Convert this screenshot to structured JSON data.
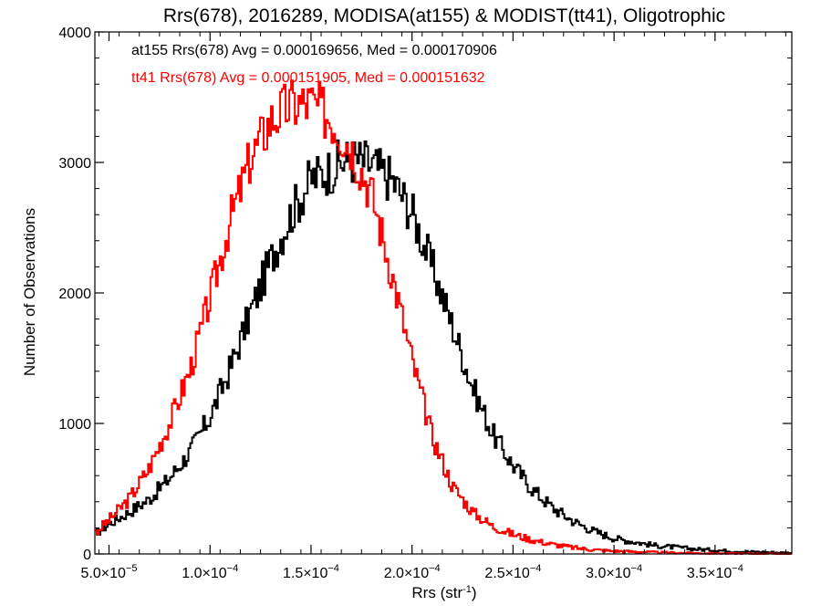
{
  "chart_data": {
    "type": "line",
    "title": "Rrs(678), 2016289, MODISA(at155) & MODIST(tt41), Oligotrophic",
    "xlabel": "Rrs (str",
    "xlabel_sup": "-1",
    "xlabel_end": ")",
    "ylabel": "Number of Observations",
    "xlim": [
      4.3e-05,
      0.000388
    ],
    "ylim": [
      0,
      4000
    ],
    "x_ticks": [
      {
        "value": 5e-05,
        "mantissa": "5.0",
        "exp": "-5"
      },
      {
        "value": 0.0001,
        "mantissa": "1.0",
        "exp": "-4"
      },
      {
        "value": 0.00015,
        "mantissa": "1.5",
        "exp": "-4"
      },
      {
        "value": 0.0002,
        "mantissa": "2.0",
        "exp": "-4"
      },
      {
        "value": 0.00025,
        "mantissa": "2.5",
        "exp": "-4"
      },
      {
        "value": 0.0003,
        "mantissa": "3.0",
        "exp": "-4"
      },
      {
        "value": 0.00035,
        "mantissa": "3.5",
        "exp": "-4"
      }
    ],
    "y_ticks": [
      {
        "value": 0,
        "label": "0"
      },
      {
        "value": 1000,
        "label": "1000"
      },
      {
        "value": 2000,
        "label": "2000"
      },
      {
        "value": 3000,
        "label": "3000"
      },
      {
        "value": 4000,
        "label": "4000"
      }
    ],
    "legend_placement": "top-left",
    "series": [
      {
        "name": "at155",
        "legend": "at155 Rrs(678) Avg = 0.000169656, Med = 0.000170906",
        "color": "#000000",
        "style": "step",
        "points": [
          [
            4.3e-05,
            150
          ],
          [
            5e-05,
            230
          ],
          [
            6e-05,
            320
          ],
          [
            7e-05,
            420
          ],
          [
            8e-05,
            580
          ],
          [
            9e-05,
            780
          ],
          [
            0.0001,
            1050
          ],
          [
            0.00011,
            1420
          ],
          [
            0.00012,
            1850
          ],
          [
            0.00013,
            2250
          ],
          [
            0.00014,
            2600
          ],
          [
            0.00015,
            2870
          ],
          [
            0.00016,
            2950
          ],
          [
            0.000165,
            3000
          ],
          [
            0.00017,
            3020
          ],
          [
            0.000175,
            3010
          ],
          [
            0.00018,
            2980
          ],
          [
            0.00019,
            2870
          ],
          [
            0.0002,
            2620
          ],
          [
            0.00021,
            2200
          ],
          [
            0.00022,
            1750
          ],
          [
            0.00023,
            1280
          ],
          [
            0.00024,
            920
          ],
          [
            0.00025,
            680
          ],
          [
            0.00026,
            490
          ],
          [
            0.00027,
            350
          ],
          [
            0.00028,
            250
          ],
          [
            0.00029,
            175
          ],
          [
            0.0003,
            120
          ],
          [
            0.00032,
            65
          ],
          [
            0.00034,
            38
          ],
          [
            0.00036,
            20
          ],
          [
            0.000388,
            8
          ]
        ]
      },
      {
        "name": "tt41",
        "legend": "tt41 Rrs(678) Avg = 0.000151905, Med = 0.000151632",
        "color": "#ff0000",
        "style": "step",
        "points": [
          [
            4.3e-05,
            160
          ],
          [
            5e-05,
            260
          ],
          [
            6e-05,
            420
          ],
          [
            7e-05,
            660
          ],
          [
            8e-05,
            1000
          ],
          [
            9e-05,
            1400
          ],
          [
            0.0001,
            1950
          ],
          [
            0.00011,
            2550
          ],
          [
            0.00012,
            3020
          ],
          [
            0.00013,
            3320
          ],
          [
            0.00014,
            3440
          ],
          [
            0.00015,
            3450
          ],
          [
            0.000155,
            3400
          ],
          [
            0.00016,
            3330
          ],
          [
            0.00017,
            3120
          ],
          [
            0.00018,
            2760
          ],
          [
            0.00019,
            2150
          ],
          [
            0.0002,
            1480
          ],
          [
            0.00021,
            900
          ],
          [
            0.00022,
            520
          ],
          [
            0.00023,
            320
          ],
          [
            0.00024,
            210
          ],
          [
            0.00025,
            150
          ],
          [
            0.00026,
            105
          ],
          [
            0.00027,
            72
          ],
          [
            0.00028,
            48
          ],
          [
            0.00029,
            32
          ],
          [
            0.0003,
            22
          ],
          [
            0.00032,
            12
          ],
          [
            0.00034,
            6
          ],
          [
            0.00036,
            3
          ],
          [
            0.000388,
            1
          ]
        ]
      }
    ]
  }
}
